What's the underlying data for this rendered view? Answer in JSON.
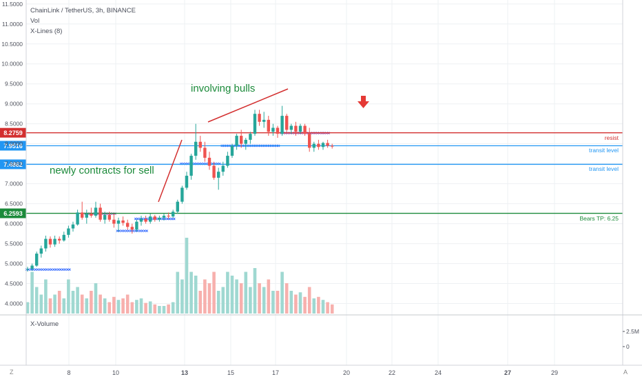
{
  "header": {
    "title": "ChainLink / TetherUS, 3h, BINANCE",
    "indicator_1": "Vol",
    "indicator_2": "X-Lines (8)"
  },
  "volume_pane": {
    "title": "X-Volume",
    "ticks": [
      "2.5M",
      "0"
    ]
  },
  "price_axis": {
    "ticks": [
      "11.5000",
      "11.0000",
      "10.5000",
      "10.0000",
      "9.5000",
      "9.0000",
      "8.5000",
      "8.0000",
      "7.5000",
      "7.0000",
      "6.5000",
      "6.0000",
      "5.5000",
      "5.0000",
      "4.5000",
      "4.0000"
    ]
  },
  "time_axis": {
    "ticks": [
      "8",
      "10",
      "13",
      "15",
      "17",
      "20",
      "22",
      "24",
      "27",
      "29"
    ],
    "bold": [
      "13",
      "27"
    ]
  },
  "corner": {
    "left": "Z",
    "right": "A"
  },
  "annotations": {
    "bulls": "involving bulls",
    "contracts": "newly contracts for sell"
  },
  "levels": [
    {
      "name": "resist-line",
      "price": 8.2759,
      "badge": "8.2759",
      "label": "resist",
      "color": "#d32f2f",
      "badge_color": "#d32f2f"
    },
    {
      "name": "transit-level-1",
      "price": 7.9516,
      "badge": "7.9516",
      "label": "transit level",
      "color": "#2196f3",
      "badge_color": "#2196f3"
    },
    {
      "name": "transit-level-2",
      "price": 7.4862,
      "badge": "7.4862",
      "label": "transit level",
      "color": "#2196f3",
      "badge_color": "#2196f3"
    },
    {
      "name": "bears-tp-line",
      "price": 6.2593,
      "badge": "6.2593",
      "label": "Bears TP: 6.25",
      "color": "#1b8a3a",
      "badge_color": "#1b8a3a"
    }
  ],
  "colors": {
    "up": "#26a69a",
    "down": "#ef5350",
    "up_vol": "#9fd8d1",
    "down_vol": "#f7b0ad",
    "xline_blue": "#2962ff",
    "xline_purple": "#8e44ad",
    "trend": "#d32f2f",
    "arrow": "#e53935"
  },
  "chart_data": {
    "type": "candlestick",
    "ylim": [
      3.75,
      11.6
    ],
    "ohlc": [
      [
        4.85,
        4.92,
        4.8,
        4.87
      ],
      [
        4.87,
        5.0,
        4.82,
        4.95
      ],
      [
        4.95,
        5.3,
        4.92,
        5.25
      ],
      [
        5.25,
        5.45,
        5.15,
        5.38
      ],
      [
        5.38,
        5.7,
        5.3,
        5.62
      ],
      [
        5.62,
        5.68,
        5.4,
        5.48
      ],
      [
        5.48,
        5.7,
        5.42,
        5.62
      ],
      [
        5.62,
        5.68,
        5.5,
        5.58
      ],
      [
        5.58,
        5.8,
        5.55,
        5.72
      ],
      [
        5.72,
        5.95,
        5.65,
        5.88
      ],
      [
        5.88,
        6.05,
        5.8,
        5.98
      ],
      [
        5.98,
        6.35,
        5.95,
        6.28
      ],
      [
        6.28,
        6.55,
        6.1,
        6.15
      ],
      [
        6.15,
        6.35,
        6.0,
        6.25
      ],
      [
        6.25,
        6.4,
        6.15,
        6.2
      ],
      [
        6.2,
        6.55,
        6.15,
        6.4
      ],
      [
        6.4,
        6.5,
        6.05,
        6.1
      ],
      [
        6.1,
        6.3,
        6.0,
        6.22
      ],
      [
        6.22,
        6.3,
        6.05,
        6.1
      ],
      [
        6.1,
        6.25,
        5.9,
        6.0
      ],
      [
        6.0,
        6.15,
        5.8,
        6.08
      ],
      [
        6.08,
        6.18,
        5.95,
        6.02
      ],
      [
        6.02,
        6.1,
        5.85,
        5.92
      ],
      [
        5.92,
        6.0,
        5.75,
        5.85
      ],
      [
        5.85,
        6.1,
        5.8,
        6.05
      ],
      [
        6.05,
        6.2,
        5.95,
        6.12
      ],
      [
        6.12,
        6.2,
        6.0,
        6.05
      ],
      [
        6.05,
        6.25,
        6.0,
        6.18
      ],
      [
        6.18,
        6.22,
        6.05,
        6.1
      ],
      [
        6.1,
        6.2,
        6.05,
        6.15
      ],
      [
        6.15,
        6.25,
        6.08,
        6.2
      ],
      [
        6.2,
        6.28,
        6.12,
        6.18
      ],
      [
        6.18,
        6.35,
        6.15,
        6.3
      ],
      [
        6.3,
        6.6,
        6.25,
        6.55
      ],
      [
        6.55,
        6.95,
        6.5,
        6.9
      ],
      [
        6.9,
        7.3,
        6.85,
        7.2
      ],
      [
        7.2,
        7.75,
        7.1,
        7.7
      ],
      [
        7.7,
        8.5,
        7.6,
        8.05
      ],
      [
        8.05,
        8.2,
        7.8,
        7.9
      ],
      [
        7.9,
        8.05,
        7.55,
        7.65
      ],
      [
        7.65,
        7.8,
        7.35,
        7.45
      ],
      [
        7.45,
        7.55,
        7.1,
        7.15
      ],
      [
        7.15,
        7.4,
        6.85,
        7.3
      ],
      [
        7.3,
        7.55,
        7.2,
        7.45
      ],
      [
        7.45,
        7.8,
        7.4,
        7.7
      ],
      [
        7.7,
        8.0,
        7.65,
        7.95
      ],
      [
        7.95,
        8.25,
        7.85,
        8.2
      ],
      [
        8.2,
        8.35,
        7.9,
        8.0
      ],
      [
        8.0,
        8.15,
        7.85,
        8.1
      ],
      [
        8.1,
        8.3,
        8.0,
        8.25
      ],
      [
        8.25,
        8.85,
        8.2,
        8.75
      ],
      [
        8.75,
        8.85,
        8.45,
        8.55
      ],
      [
        8.55,
        8.8,
        8.4,
        8.6
      ],
      [
        8.6,
        8.7,
        8.2,
        8.3
      ],
      [
        8.3,
        8.5,
        8.2,
        8.4
      ],
      [
        8.4,
        8.45,
        8.15,
        8.25
      ],
      [
        8.25,
        8.95,
        8.2,
        8.7
      ],
      [
        8.7,
        8.75,
        8.3,
        8.35
      ],
      [
        8.35,
        8.5,
        8.25,
        8.45
      ],
      [
        8.45,
        8.55,
        8.2,
        8.3
      ],
      [
        8.3,
        8.5,
        8.25,
        8.45
      ],
      [
        8.45,
        8.5,
        8.2,
        8.25
      ],
      [
        8.25,
        8.4,
        7.8,
        7.9
      ],
      [
        7.9,
        8.05,
        7.8,
        8.0
      ],
      [
        8.0,
        8.1,
        7.85,
        7.92
      ],
      [
        7.92,
        8.05,
        7.85,
        8.02
      ],
      [
        8.02,
        8.1,
        7.9,
        7.95
      ],
      [
        7.95,
        8.0,
        7.88,
        7.93
      ]
    ],
    "volume_ratio": [
      0.15,
      0.55,
      0.35,
      0.25,
      0.45,
      0.2,
      0.25,
      0.3,
      0.2,
      0.45,
      0.3,
      0.35,
      0.25,
      0.2,
      0.3,
      0.4,
      0.25,
      0.2,
      0.15,
      0.22,
      0.18,
      0.2,
      0.25,
      0.15,
      0.18,
      0.2,
      0.14,
      0.16,
      0.12,
      0.1,
      0.1,
      0.12,
      0.15,
      0.55,
      0.45,
      1.0,
      0.55,
      0.5,
      0.3,
      0.45,
      0.4,
      0.55,
      0.3,
      0.35,
      0.55,
      0.5,
      0.45,
      0.4,
      0.55,
      0.35,
      0.6,
      0.4,
      0.35,
      0.45,
      0.3,
      0.3,
      0.55,
      0.4,
      0.3,
      0.25,
      0.28,
      0.22,
      0.35,
      0.2,
      0.22,
      0.18,
      0.15,
      0.12
    ],
    "xlines": [
      {
        "color": "blue",
        "price": 4.85,
        "from": 0,
        "to": 9
      },
      {
        "color": "blue",
        "price": 6.12,
        "from": 24,
        "to": 32
      },
      {
        "color": "blue",
        "price": 5.82,
        "from": 20,
        "to": 26
      },
      {
        "color": "purple",
        "price": 6.25,
        "from": 13,
        "to": 19
      },
      {
        "color": "blue",
        "price": 7.5,
        "from": 34,
        "to": 42
      },
      {
        "color": "blue",
        "price": 7.95,
        "from": 43,
        "to": 55
      },
      {
        "color": "purple",
        "price": 8.27,
        "from": 56,
        "to": 66
      }
    ]
  }
}
